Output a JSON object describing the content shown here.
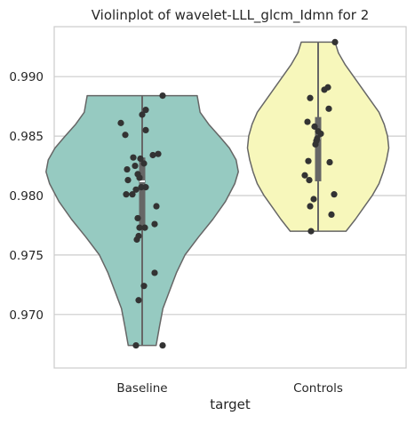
{
  "chart_data": {
    "type": "violin",
    "title": "Violinplot of wavelet-LLL_glcm_Idmn for 2",
    "xlabel": "target",
    "ylabel": "",
    "ylim": [
      0.9655,
      0.9942
    ],
    "yticks": [
      0.97,
      0.975,
      0.98,
      0.985,
      0.99
    ],
    "ytick_labels": [
      "0.970",
      "0.975",
      "0.980",
      "0.985",
      "0.990"
    ],
    "grid": "horizontal",
    "categories": [
      "Baseline",
      "Controls"
    ],
    "groups": [
      {
        "category": "Baseline",
        "fill": "#96cac1",
        "min": 0.9674,
        "max": 0.9884,
        "q1": 0.9771,
        "median": 0.9812,
        "q3": 0.9832,
        "density": [
          [
            0.9674,
            15.7
          ],
          [
            0.969,
            19.5
          ],
          [
            0.9705,
            23.3
          ],
          [
            0.972,
            30.9
          ],
          [
            0.9735,
            38.5
          ],
          [
            0.975,
            48.1
          ],
          [
            0.9765,
            63.3
          ],
          [
            0.978,
            79.5
          ],
          [
            0.9795,
            93.7
          ],
          [
            0.981,
            104.2
          ],
          [
            0.982,
            108.2
          ],
          [
            0.983,
            105.7
          ],
          [
            0.984,
            98.1
          ],
          [
            0.985,
            86.7
          ],
          [
            0.986,
            74.8
          ],
          [
            0.987,
            65.2
          ],
          [
            0.9884,
            61.9
          ]
        ],
        "points": [
          [
            0.9884,
            23
          ],
          [
            0.9872,
            4
          ],
          [
            0.9868,
            0
          ],
          [
            0.9861,
            -24
          ],
          [
            0.9855,
            4
          ],
          [
            0.9851,
            -19
          ],
          [
            0.9835,
            18
          ],
          [
            0.9834,
            12
          ],
          [
            0.9832,
            -10
          ],
          [
            0.9831,
            -2
          ],
          [
            0.9827,
            2
          ],
          [
            0.9825,
            -8
          ],
          [
            0.9822,
            -17
          ],
          [
            0.9818,
            -5
          ],
          [
            0.9815,
            -3
          ],
          [
            0.9813,
            -16
          ],
          [
            0.9807,
            4
          ],
          [
            0.9807,
            -1
          ],
          [
            0.9805,
            -7
          ],
          [
            0.9801,
            -18
          ],
          [
            0.9801,
            -11
          ],
          [
            0.9791,
            16
          ],
          [
            0.9781,
            -5
          ],
          [
            0.9776,
            14
          ],
          [
            0.9773,
            3
          ],
          [
            0.9773,
            -3
          ],
          [
            0.9766,
            -4
          ],
          [
            0.9763,
            -6
          ],
          [
            0.9735,
            14
          ],
          [
            0.9724,
            2
          ],
          [
            0.9712,
            -4
          ],
          [
            0.9674,
            -7
          ],
          [
            0.9674,
            23
          ]
        ]
      },
      {
        "category": "Controls",
        "fill": "#f7f7bb",
        "min": 0.977,
        "max": 0.9929,
        "q1": 0.9812,
        "median": 0.9848,
        "q3": 0.9866,
        "density": [
          [
            0.977,
            31.4
          ],
          [
            0.978,
            41.9
          ],
          [
            0.979,
            51.4
          ],
          [
            0.98,
            60.9
          ],
          [
            0.981,
            68.5
          ],
          [
            0.982,
            73.3
          ],
          [
            0.983,
            77.0
          ],
          [
            0.984,
            79.5
          ],
          [
            0.985,
            78.1
          ],
          [
            0.986,
            74.3
          ],
          [
            0.987,
            68.5
          ],
          [
            0.988,
            59.0
          ],
          [
            0.989,
            49.5
          ],
          [
            0.99,
            40.0
          ],
          [
            0.991,
            30.5
          ],
          [
            0.992,
            22.8
          ],
          [
            0.9929,
            19.0
          ]
        ],
        "points": [
          [
            0.9929,
            19
          ],
          [
            0.9891,
            11
          ],
          [
            0.9889,
            7
          ],
          [
            0.9882,
            -9
          ],
          [
            0.9873,
            12
          ],
          [
            0.9862,
            -12
          ],
          [
            0.9858,
            -4
          ],
          [
            0.9854,
            0
          ],
          [
            0.9852,
            3
          ],
          [
            0.9848,
            -1
          ],
          [
            0.9846,
            -2
          ],
          [
            0.9843,
            -3
          ],
          [
            0.9829,
            -11
          ],
          [
            0.9828,
            13
          ],
          [
            0.9817,
            -15
          ],
          [
            0.9813,
            -10
          ],
          [
            0.9801,
            18
          ],
          [
            0.9797,
            -5
          ],
          [
            0.9791,
            -9
          ],
          [
            0.9784,
            15
          ],
          [
            0.977,
            -8
          ]
        ]
      }
    ]
  }
}
